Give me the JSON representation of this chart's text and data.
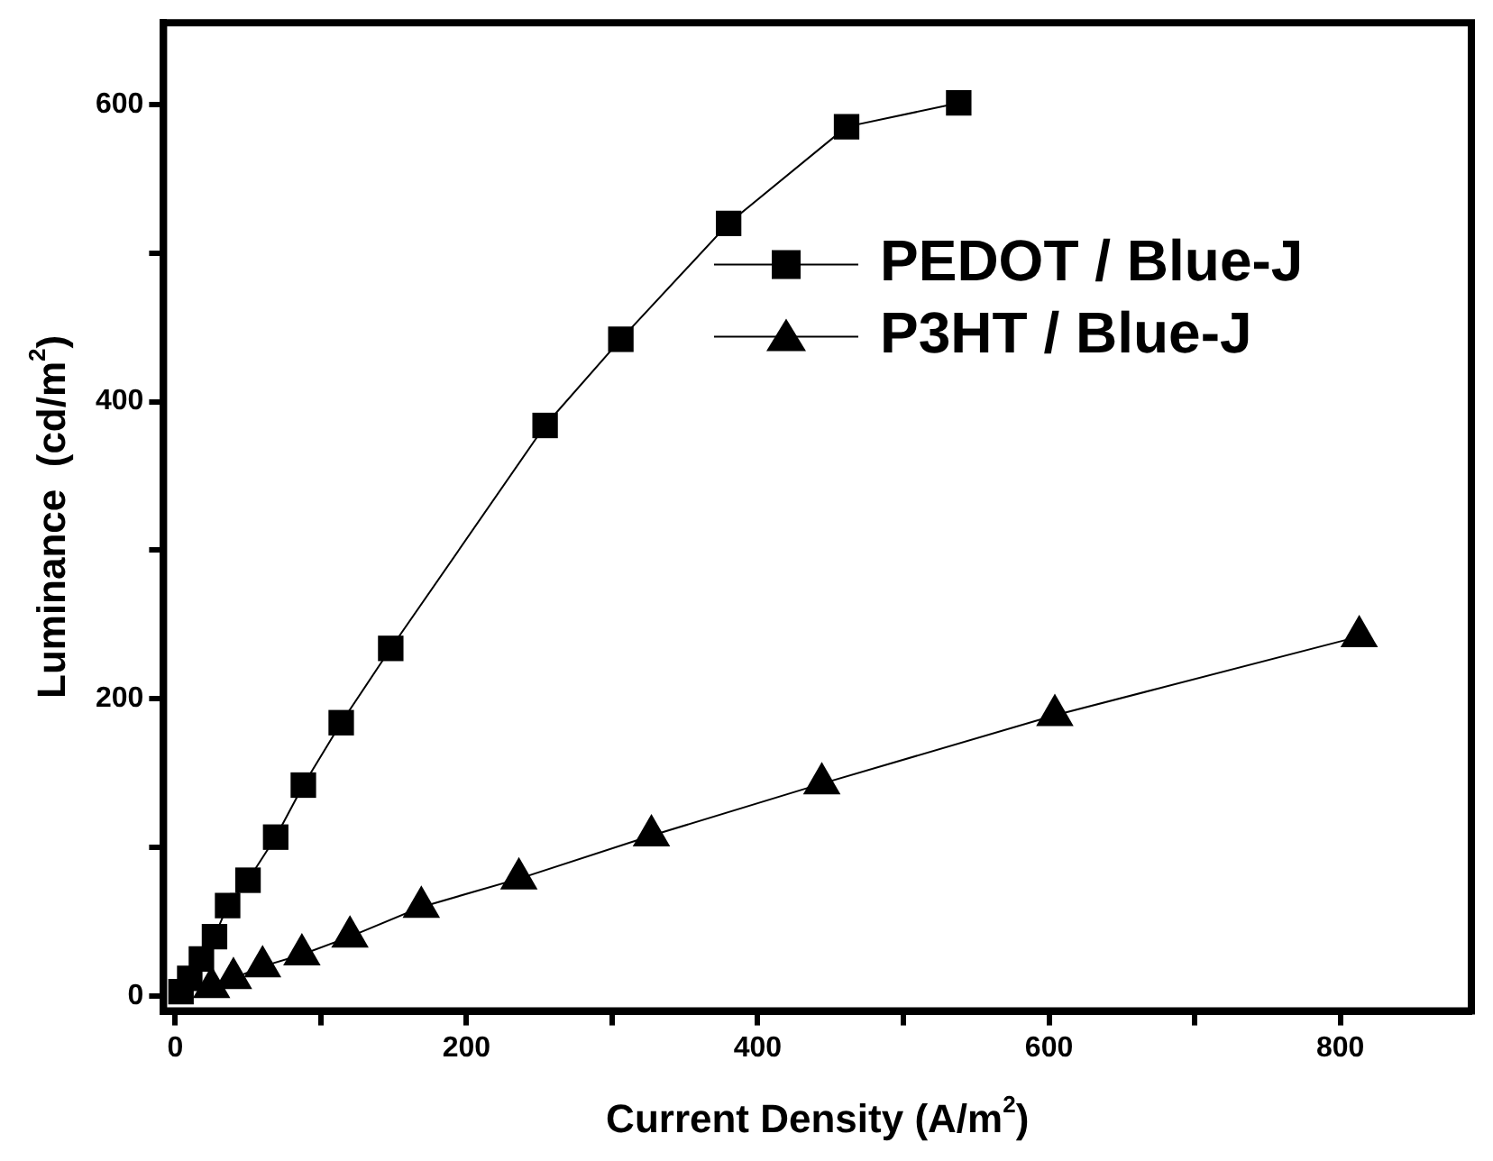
{
  "chart_data": {
    "type": "line",
    "xlabel": "Current Density (A/m$^{2}$)",
    "ylabel": "Luminance  (cd/m$^{2}$)",
    "xlim": [
      -8,
      890
    ],
    "ylim": [
      -10,
      655
    ],
    "xticks": [
      0,
      {
        "value": 100,
        "label": null
      },
      200,
      {
        "value": 300,
        "label": null
      },
      400,
      {
        "value": 500,
        "label": null
      },
      600,
      {
        "value": 700,
        "label": null
      },
      800
    ],
    "yticks": [
      0,
      {
        "value": 100,
        "label": null
      },
      200,
      {
        "value": 300,
        "label": null
      },
      400,
      {
        "value": 500,
        "label": null
      },
      600
    ],
    "grid": false,
    "legend": "right",
    "line_style": "solid",
    "series": [
      {
        "name": "PEDOT / Blue-J",
        "color": "#000000",
        "marker": "square",
        "x": [
          4,
          10,
          18,
          27,
          36,
          50,
          69,
          88,
          114,
          148,
          254,
          306,
          380,
          461,
          538
        ],
        "values": [
          3,
          12,
          25,
          40,
          61,
          78,
          107,
          142,
          184,
          234,
          384,
          442,
          520,
          585,
          601
        ]
      },
      {
        "name": "P3HT / Blue-J",
        "color": "#000000",
        "marker": "triangle",
        "x": [
          25,
          40,
          60,
          87,
          120,
          169,
          236,
          327,
          444,
          604,
          813
        ],
        "values": [
          6,
          12,
          20,
          28,
          40,
          60,
          79,
          108,
          143,
          189,
          242
        ]
      }
    ]
  }
}
